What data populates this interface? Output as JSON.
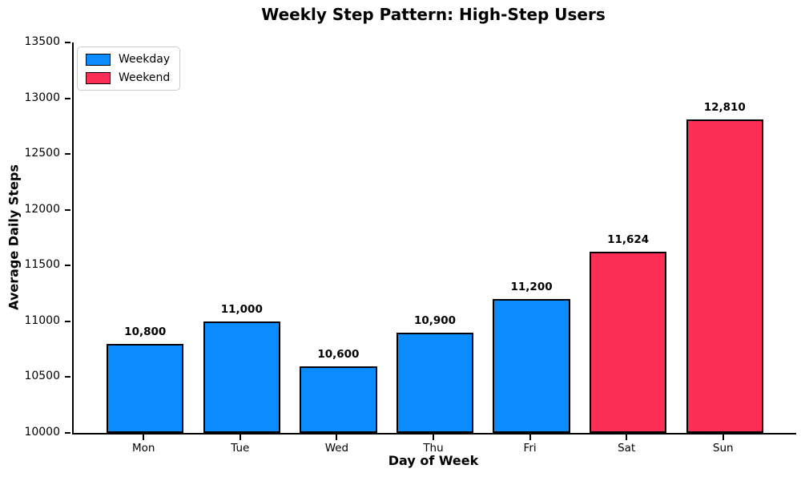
{
  "chart_data": {
    "type": "bar",
    "title": "Weekly Step Pattern: High-Step Users",
    "xlabel": "Day of Week",
    "ylabel": "Average Daily Steps",
    "categories": [
      "Mon",
      "Tue",
      "Wed",
      "Thu",
      "Fri",
      "Sat",
      "Sun"
    ],
    "values": [
      10800,
      11000,
      10600,
      10900,
      11200,
      11624,
      12810
    ],
    "bar_value_labels": [
      "10,800",
      "11,000",
      "10,600",
      "10,900",
      "11,200",
      "11,624",
      "12,810"
    ],
    "bar_groups": [
      "weekday",
      "weekday",
      "weekday",
      "weekday",
      "weekday",
      "weekend",
      "weekend"
    ],
    "colors": {
      "weekday": "#0a8cff",
      "weekend": "#fb2e55",
      "bar_edge": "#000000",
      "axis": "#000000",
      "text": "#000000"
    },
    "ylim": [
      10000,
      13500
    ],
    "yticks": [
      10000,
      10500,
      11000,
      11500,
      12000,
      12500,
      13000,
      13500
    ],
    "ytick_labels": [
      "10000",
      "10500",
      "11000",
      "11500",
      "12000",
      "12500",
      "13000",
      "13500"
    ],
    "grid": false,
    "legend": {
      "position": "upper-left",
      "entries": [
        {
          "label": "Weekday",
          "group": "weekday",
          "color": "#0a8cff"
        },
        {
          "label": "Weekend",
          "group": "weekend",
          "color": "#fb2e55"
        }
      ]
    }
  }
}
